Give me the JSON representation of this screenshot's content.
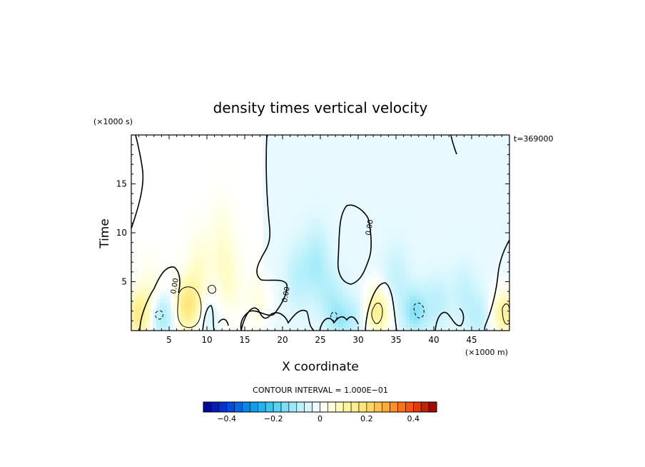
{
  "chart_data": {
    "type": "heatmap",
    "title": "density times vertical velocity",
    "xlabel": "X coordinate",
    "ylabel": "Time",
    "x_unit": "(×1000 m)",
    "y_unit": "(×1000 s)",
    "annotation": "t=369000",
    "contour_interval": "CONTOUR INTERVAL = 1.000E−01",
    "xlim": [
      0,
      50
    ],
    "ylim": [
      0,
      20
    ],
    "x_ticks": [
      5,
      10,
      15,
      20,
      25,
      30,
      35,
      40,
      45
    ],
    "y_ticks": [
      5,
      10,
      15
    ],
    "contour_labels": [
      "0.00",
      "0.00",
      "0.00"
    ],
    "colorbar": {
      "range": [
        -0.5,
        0.5
      ],
      "ticks": [
        {
          "value": -0.4,
          "label": "−0.4"
        },
        {
          "value": -0.2,
          "label": "−0.2"
        },
        {
          "value": 0,
          "label": "0"
        },
        {
          "value": 0.2,
          "label": "0.2"
        },
        {
          "value": 0.4,
          "label": "0.4"
        }
      ]
    },
    "blobs": [
      {
        "x": 1.0,
        "y": 1.6,
        "v": 0.15
      },
      {
        "x": 2.5,
        "y": 4.0,
        "v": 0.05
      },
      {
        "x": 4.0,
        "y": 1.5,
        "v": -0.12
      },
      {
        "x": 7.5,
        "y": 2.6,
        "v": 0.18
      },
      {
        "x": 9.0,
        "y": 6.5,
        "v": 0.06
      },
      {
        "x": 12.0,
        "y": 9.0,
        "v": 0.05
      },
      {
        "x": 13.0,
        "y": 5.0,
        "v": 0.05
      },
      {
        "x": 10.0,
        "y": 1.4,
        "v": -0.06
      },
      {
        "x": 17.0,
        "y": 3.0,
        "v": 0.04
      },
      {
        "x": 22.0,
        "y": 5.5,
        "v": -0.06
      },
      {
        "x": 24.5,
        "y": 7.0,
        "v": -0.08
      },
      {
        "x": 26.5,
        "y": 3.5,
        "v": -0.06
      },
      {
        "x": 27.5,
        "y": 1.0,
        "v": -0.07
      },
      {
        "x": 29.5,
        "y": 1.5,
        "v": -0.05
      },
      {
        "x": 32.5,
        "y": 2.0,
        "v": 0.16
      },
      {
        "x": 35.0,
        "y": 5.5,
        "v": -0.05
      },
      {
        "x": 37.5,
        "y": 2.0,
        "v": -0.12
      },
      {
        "x": 40.5,
        "y": 3.0,
        "v": -0.06
      },
      {
        "x": 44.0,
        "y": 4.0,
        "v": -0.05
      },
      {
        "x": 46.0,
        "y": 1.5,
        "v": -0.06
      },
      {
        "x": 49.3,
        "y": 1.8,
        "v": 0.15
      },
      {
        "x": 30.0,
        "y": 11.0,
        "v": 0.0
      }
    ],
    "background_value": -0.02
  }
}
